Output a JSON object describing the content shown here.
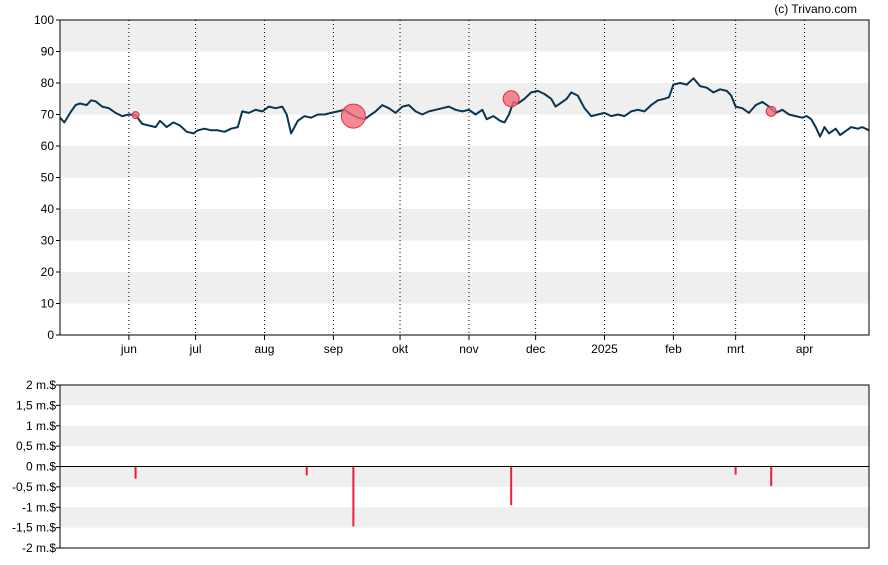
{
  "credit": "(c) Trivano.com",
  "colors": {
    "band": "#efefef",
    "line": "#0a3552",
    "bubble_fill": "#f26a7a",
    "bubble_stroke": "#d83048",
    "bar": "#e8203a",
    "frame": "#000000",
    "grid_dotted": "#000000"
  },
  "chart_data": [
    {
      "type": "line",
      "ylim": [
        0,
        100
      ],
      "y_ticks": [
        "0",
        "10",
        "20",
        "30",
        "40",
        "50",
        "60",
        "70",
        "80",
        "90",
        "100"
      ],
      "x_ticks": [
        "jun",
        "jul",
        "aug",
        "sep",
        "okt",
        "nov",
        "dec",
        "2025",
        "feb",
        "mrt",
        "apr"
      ],
      "x_tick_dates": [
        "2024-06-01",
        "2024-07-01",
        "2024-08-01",
        "2024-09-01",
        "2024-10-01",
        "2024-11-01",
        "2024-12-01",
        "2025-01-01",
        "2025-02-01",
        "2025-03-01",
        "2025-04-01"
      ],
      "x_range": [
        "2024-05-01",
        "2025-04-30"
      ],
      "grid": "alternating horizontal bands; dotted vertical lines at month ticks",
      "series": [
        {
          "points": [
            [
              "2024-05-01",
              69
            ],
            [
              "2024-05-03",
              67.5
            ],
            [
              "2024-05-06",
              71
            ],
            [
              "2024-05-08",
              73
            ],
            [
              "2024-05-10",
              73.5
            ],
            [
              "2024-05-13",
              73
            ],
            [
              "2024-05-15",
              74.5
            ],
            [
              "2024-05-17",
              74.2
            ],
            [
              "2024-05-20",
              72.5
            ],
            [
              "2024-05-23",
              72
            ],
            [
              "2024-05-26",
              70.5
            ],
            [
              "2024-05-29",
              69.5
            ],
            [
              "2024-06-01",
              70
            ],
            [
              "2024-06-04",
              69.8
            ],
            [
              "2024-06-07",
              67
            ],
            [
              "2024-06-10",
              66.5
            ],
            [
              "2024-06-13",
              66
            ],
            [
              "2024-06-15",
              68
            ],
            [
              "2024-06-18",
              66
            ],
            [
              "2024-06-21",
              67.5
            ],
            [
              "2024-06-24",
              66.5
            ],
            [
              "2024-06-27",
              64.5
            ],
            [
              "2024-06-30",
              64
            ],
            [
              "2024-07-02",
              65
            ],
            [
              "2024-07-05",
              65.5
            ],
            [
              "2024-07-08",
              65
            ],
            [
              "2024-07-11",
              65
            ],
            [
              "2024-07-14",
              64.5
            ],
            [
              "2024-07-17",
              65.5
            ],
            [
              "2024-07-20",
              66
            ],
            [
              "2024-07-22",
              71
            ],
            [
              "2024-07-25",
              70.5
            ],
            [
              "2024-07-28",
              71.5
            ],
            [
              "2024-07-31",
              71
            ],
            [
              "2024-08-03",
              72.5
            ],
            [
              "2024-08-06",
              72
            ],
            [
              "2024-08-09",
              72.5
            ],
            [
              "2024-08-11",
              70
            ],
            [
              "2024-08-13",
              64
            ],
            [
              "2024-08-16",
              68
            ],
            [
              "2024-08-19",
              69.5
            ],
            [
              "2024-08-22",
              69
            ],
            [
              "2024-08-25",
              70
            ],
            [
              "2024-08-28",
              70
            ],
            [
              "2024-08-31",
              70.5
            ],
            [
              "2024-09-03",
              71
            ],
            [
              "2024-09-06",
              71.5
            ],
            [
              "2024-09-09",
              70
            ],
            [
              "2024-09-12",
              69
            ],
            [
              "2024-09-15",
              68.5
            ],
            [
              "2024-09-17",
              69.5
            ],
            [
              "2024-09-20",
              71
            ],
            [
              "2024-09-23",
              73
            ],
            [
              "2024-09-26",
              72
            ],
            [
              "2024-09-29",
              70.5
            ],
            [
              "2024-10-02",
              72.5
            ],
            [
              "2024-10-05",
              73
            ],
            [
              "2024-10-08",
              71
            ],
            [
              "2024-10-11",
              70
            ],
            [
              "2024-10-14",
              71
            ],
            [
              "2024-10-17",
              71.5
            ],
            [
              "2024-10-20",
              72
            ],
            [
              "2024-10-23",
              72.5
            ],
            [
              "2024-10-26",
              71.5
            ],
            [
              "2024-10-29",
              71
            ],
            [
              "2024-11-01",
              71.5
            ],
            [
              "2024-11-04",
              70
            ],
            [
              "2024-11-07",
              71.5
            ],
            [
              "2024-11-09",
              68.5
            ],
            [
              "2024-11-12",
              69.5
            ],
            [
              "2024-11-15",
              68
            ],
            [
              "2024-11-17",
              67.5
            ],
            [
              "2024-11-19",
              70
            ],
            [
              "2024-11-21",
              74
            ],
            [
              "2024-11-23",
              73.5
            ],
            [
              "2024-11-26",
              75
            ],
            [
              "2024-11-29",
              77
            ],
            [
              "2024-12-02",
              77.5
            ],
            [
              "2024-12-05",
              76.5
            ],
            [
              "2024-12-08",
              75
            ],
            [
              "2024-12-10",
              72.5
            ],
            [
              "2024-12-13",
              74
            ],
            [
              "2024-12-15",
              75
            ],
            [
              "2024-12-17",
              77
            ],
            [
              "2024-12-20",
              76
            ],
            [
              "2024-12-23",
              72
            ],
            [
              "2024-12-26",
              69.5
            ],
            [
              "2024-12-29",
              70
            ],
            [
              "2025-01-01",
              70.5
            ],
            [
              "2025-01-04",
              69.5
            ],
            [
              "2025-01-07",
              70
            ],
            [
              "2025-01-10",
              69.5
            ],
            [
              "2025-01-13",
              71
            ],
            [
              "2025-01-16",
              71.5
            ],
            [
              "2025-01-19",
              71
            ],
            [
              "2025-01-22",
              73
            ],
            [
              "2025-01-25",
              74.5
            ],
            [
              "2025-01-28",
              75
            ],
            [
              "2025-01-30",
              75.5
            ],
            [
              "2025-02-01",
              79.5
            ],
            [
              "2025-02-04",
              80
            ],
            [
              "2025-02-07",
              79.5
            ],
            [
              "2025-02-10",
              81.5
            ],
            [
              "2025-02-13",
              79
            ],
            [
              "2025-02-16",
              78.5
            ],
            [
              "2025-02-19",
              77
            ],
            [
              "2025-02-22",
              78
            ],
            [
              "2025-02-25",
              77.5
            ],
            [
              "2025-02-27",
              76
            ],
            [
              "2025-03-01",
              72.5
            ],
            [
              "2025-03-04",
              72
            ],
            [
              "2025-03-07",
              70.5
            ],
            [
              "2025-03-10",
              73
            ],
            [
              "2025-03-13",
              74
            ],
            [
              "2025-03-16",
              72.5
            ],
            [
              "2025-03-19",
              70.5
            ],
            [
              "2025-03-22",
              71.5
            ],
            [
              "2025-03-25",
              70
            ],
            [
              "2025-03-28",
              69.5
            ],
            [
              "2025-03-31",
              69
            ],
            [
              "2025-04-02",
              69.5
            ],
            [
              "2025-04-04",
              68.5
            ],
            [
              "2025-04-06",
              66
            ],
            [
              "2025-04-08",
              63
            ],
            [
              "2025-04-10",
              66
            ],
            [
              "2025-04-12",
              64
            ],
            [
              "2025-04-15",
              65.5
            ],
            [
              "2025-04-17",
              63.5
            ],
            [
              "2025-04-20",
              65
            ],
            [
              "2025-04-22",
              66
            ],
            [
              "2025-04-25",
              65.5
            ],
            [
              "2025-04-27",
              66
            ],
            [
              "2025-04-30",
              65
            ]
          ]
        }
      ],
      "markers": [
        {
          "date": "2024-06-04",
          "y": 69.8,
          "size": 0.15
        },
        {
          "date": "2024-09-10",
          "y": 69.5,
          "size": 1.0
        },
        {
          "date": "2024-11-20",
          "y": 75,
          "size": 0.6
        },
        {
          "date": "2025-03-17",
          "y": 71,
          "size": 0.3
        }
      ]
    },
    {
      "type": "bar",
      "ylim": [
        -2,
        2
      ],
      "y_ticks": [
        "2 m.$",
        "1,5 m.$",
        "1 m.$",
        "0,5 m.$",
        "0 m.$",
        "-0,5 m.$",
        "-1 m.$",
        "-1,5 m.$",
        "-2 m.$"
      ],
      "x_range": [
        "2024-05-01",
        "2025-04-30"
      ],
      "bars": [
        {
          "date": "2024-06-04",
          "value": -0.3
        },
        {
          "date": "2024-08-20",
          "value": -0.22
        },
        {
          "date": "2024-09-10",
          "value": -1.47
        },
        {
          "date": "2024-11-20",
          "value": -0.95
        },
        {
          "date": "2025-03-01",
          "value": -0.2
        },
        {
          "date": "2025-03-17",
          "value": -0.48
        }
      ]
    }
  ]
}
